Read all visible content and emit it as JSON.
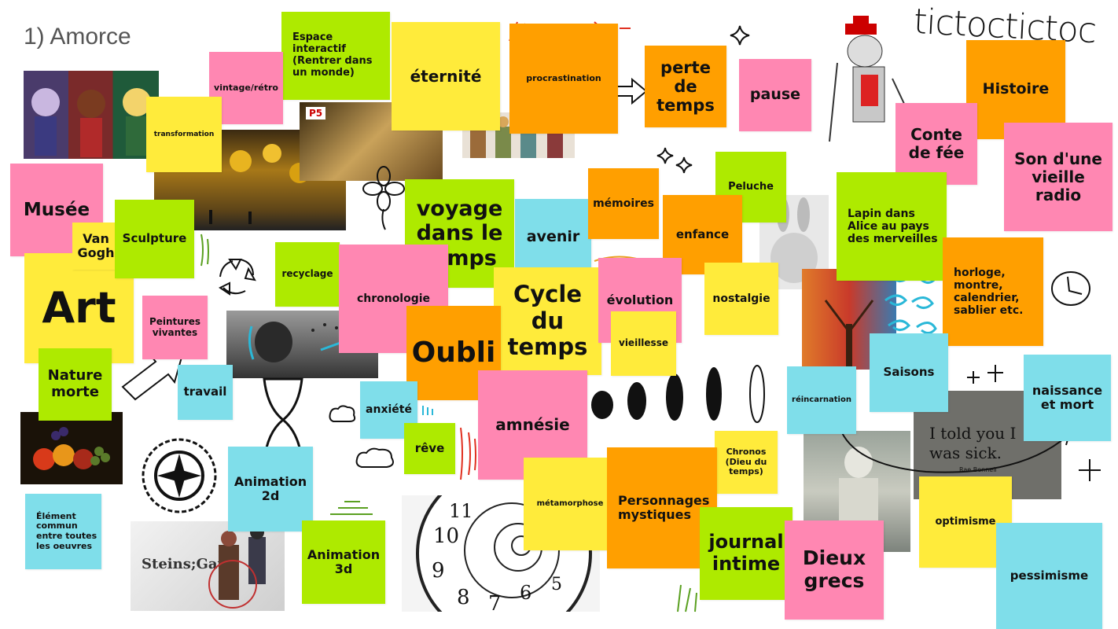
{
  "title": "1) Amorce",
  "handwriting": "tictoctictoc",
  "notes": {
    "espace": "Espace interactif (Rentrer dans un monde)",
    "eternite": "éternité",
    "procrastination": "procrastination",
    "perte": "perte de temps",
    "pause": "pause",
    "histoire": "Histoire",
    "conte": "Conte de fée",
    "son": "Son d'une vieille radio",
    "vintage": "vintage/rétro",
    "transformation": "transformation",
    "musee": "Musée",
    "vangogh": "Van Gogh",
    "sculpture": "Sculpture",
    "art": "Art",
    "voyage": "voyage dans le temps",
    "avenir": "avenir",
    "memoires": "mémoires",
    "peluche": "Peluche",
    "enfance": "enfance",
    "lapin": "Lapin dans Alice au pays des merveilles",
    "recyclage": "recyclage",
    "chronologie": "chronologie",
    "cycle": "Cycle du temps",
    "evolution": "évolution",
    "nostalgie": "nostalgie",
    "horloge": "horloge, montre, calendrier, sablier etc.",
    "peintures": "Peintures vivantes",
    "oubli": "Oubli",
    "vieillesse": "vieillesse",
    "saisons": "Saisons",
    "nature": "Nature morte",
    "travail": "travail",
    "anxiete": "anxiété",
    "amnesie": "amnésie",
    "reincarnation": "réincarnation",
    "naissance": "naissance et mort",
    "reve": "rêve",
    "chronos": "Chronos (Dieu du temps)",
    "animation2d": "Animation 2d",
    "metamorphose": "métamorphose",
    "personnages": "Personnages mystiques",
    "optimisme": "optimisme",
    "element": "Élément commun entre toutes les oeuvres",
    "animation3d": "Animation 3d",
    "journal": "journal intime",
    "dieux": "Dieux grecs",
    "pessimisme": "pessimisme"
  },
  "images": {
    "gravestone_text": "I told you I was sick.",
    "gravestone_name": "Rae Bennell",
    "steins_gate": "Steins;Gate",
    "p5_logo": "P5"
  },
  "icons": [
    "arrow-right-icon",
    "arrow-up-right-icon",
    "sparkle-icon",
    "recycle-icon",
    "clock-icon",
    "flower-icon",
    "cloud-icon"
  ]
}
